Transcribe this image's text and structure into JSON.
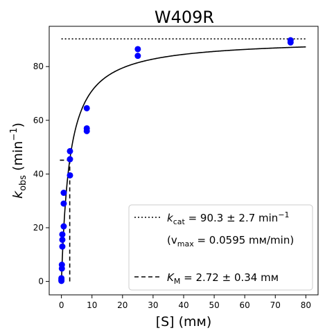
{
  "chart_data": {
    "type": "scatter",
    "title": "W409R",
    "xlabel": "[S] (mᴍ)",
    "ylabel_main": "k",
    "ylabel_sub": "obs",
    "ylabel_unit_pre": " (min",
    "ylabel_unit_sup": "−1",
    "ylabel_unit_post": ")",
    "xlim": [
      -4,
      84
    ],
    "ylim": [
      -5,
      95
    ],
    "xticks": [
      0,
      10,
      20,
      30,
      40,
      50,
      60,
      70,
      80
    ],
    "yticks": [
      0,
      20,
      40,
      60,
      80
    ],
    "grid": false,
    "points": [
      {
        "x": 0,
        "y": 0.2
      },
      {
        "x": 0,
        "y": 0.6
      },
      {
        "x": 0,
        "y": 1.2
      },
      {
        "x": 0.15,
        "y": 4.8
      },
      {
        "x": 0.15,
        "y": 6.2
      },
      {
        "x": 0.3,
        "y": 13
      },
      {
        "x": 0.3,
        "y": 15.5
      },
      {
        "x": 0.3,
        "y": 17.5
      },
      {
        "x": 0.75,
        "y": 20.5
      },
      {
        "x": 0.75,
        "y": 29
      },
      {
        "x": 0.75,
        "y": 33
      },
      {
        "x": 2.8,
        "y": 39.5
      },
      {
        "x": 2.8,
        "y": 45.5
      },
      {
        "x": 2.8,
        "y": 48.5
      },
      {
        "x": 8.3,
        "y": 56
      },
      {
        "x": 8.3,
        "y": 57
      },
      {
        "x": 8.3,
        "y": 64.5
      },
      {
        "x": 25,
        "y": 84
      },
      {
        "x": 25,
        "y": 86.5
      },
      {
        "x": 75,
        "y": 89
      },
      {
        "x": 75,
        "y": 89.8
      }
    ],
    "fit": {
      "kcat": 90.3,
      "km": 2.72,
      "x_range": [
        0,
        80
      ],
      "color": "#000000"
    },
    "point_color": "#0000ff",
    "legend": {
      "placement": "lower-right",
      "kcat_pre": "k",
      "kcat_sub": "cat",
      "kcat_post": " = 90.3 ± 2.7 min",
      "kcat_sup": "−1",
      "vmax_pre": "(v",
      "vmax_sub": "max",
      "vmax_post": " = 0.0595 mᴍ/min)",
      "km_pre": "K",
      "km_sub": "M",
      "km_post": " = 2.72 ± 0.34 mᴍ"
    }
  }
}
